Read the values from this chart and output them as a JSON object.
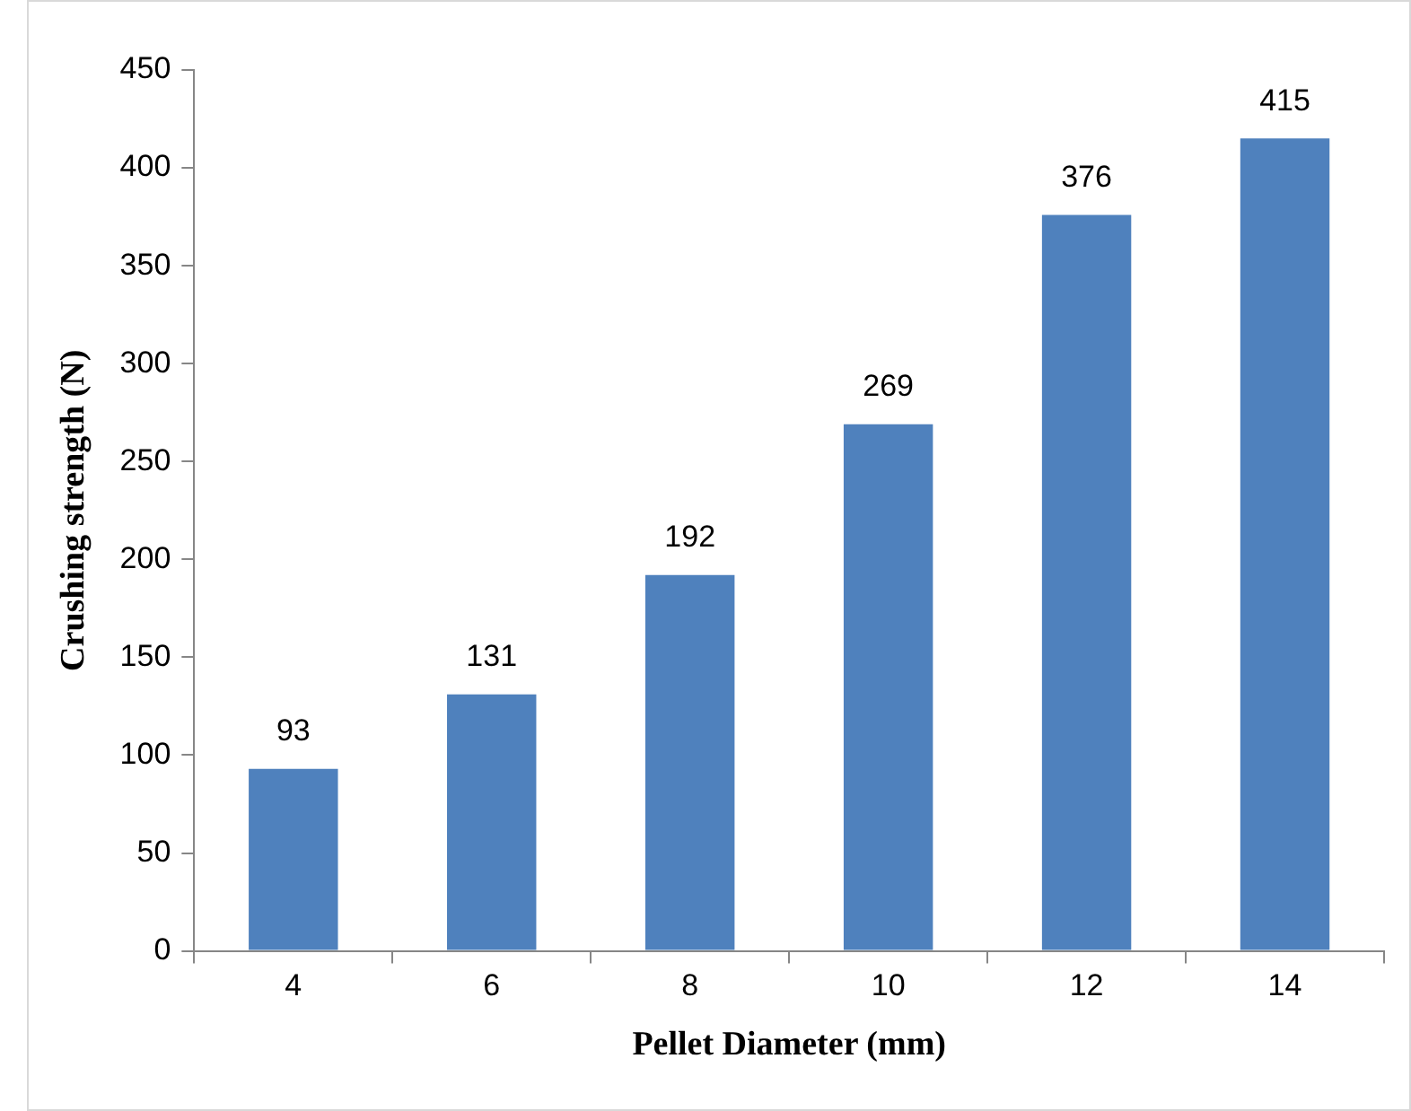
{
  "chart_data": {
    "type": "bar",
    "xlabel": "Pellet Diameter (mm)",
    "ylabel": "Crushing strength (N)",
    "categories": [
      "4",
      "6",
      "8",
      "10",
      "12",
      "14"
    ],
    "values": [
      93,
      131,
      192,
      269,
      376,
      415
    ],
    "color": "#4f81bd",
    "ylim": [
      0,
      450
    ],
    "yticks": [
      0,
      50,
      100,
      150,
      200,
      250,
      300,
      350,
      400,
      450
    ],
    "grid": false,
    "legend": false,
    "data_labels": true
  }
}
